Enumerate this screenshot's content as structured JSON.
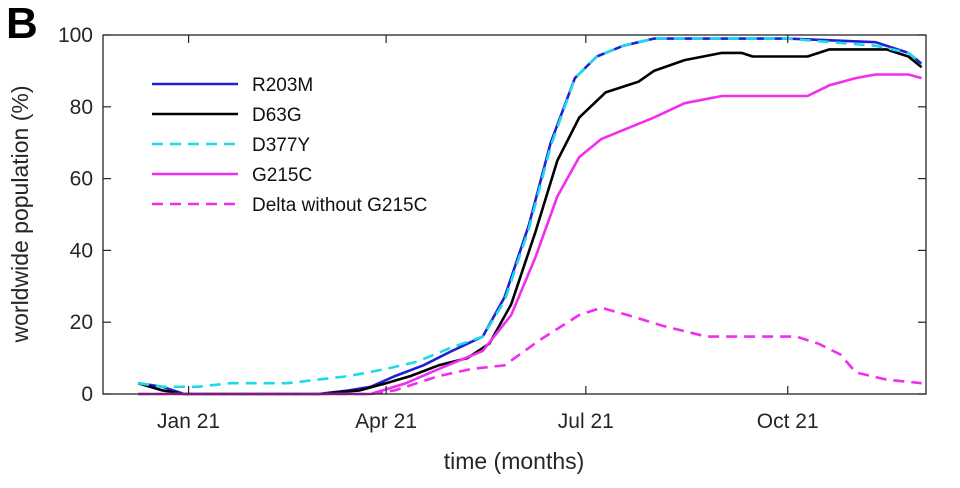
{
  "figure": {
    "panel_label": "B"
  },
  "chart_data": {
    "type": "line",
    "title": "",
    "xlabel": "time (months)",
    "ylabel": "worldwide population (%)",
    "xlim": [
      "2020-11-23",
      "2021-12-03"
    ],
    "ylim": [
      0,
      100
    ],
    "xticks": [
      {
        "date": "2021-01-01",
        "label": "Jan 21"
      },
      {
        "date": "2021-04-01",
        "label": "Apr 21"
      },
      {
        "date": "2021-07-01",
        "label": "Jul 21"
      },
      {
        "date": "2021-10-01",
        "label": "Oct 21"
      }
    ],
    "yticks": [
      0,
      20,
      40,
      60,
      80,
      100
    ],
    "grid": false,
    "legend_position": "top-left",
    "series": [
      {
        "name": "R203M",
        "color": "#1f1fd6",
        "dash": "solid",
        "points": [
          [
            "2020-12-09",
            3
          ],
          [
            "2020-12-20",
            2
          ],
          [
            "2020-12-30",
            0
          ],
          [
            "2021-02-01",
            0
          ],
          [
            "2021-03-01",
            0
          ],
          [
            "2021-03-15",
            1
          ],
          [
            "2021-03-25",
            2
          ],
          [
            "2021-04-05",
            5
          ],
          [
            "2021-04-18",
            8
          ],
          [
            "2021-05-01",
            12
          ],
          [
            "2021-05-15",
            16
          ],
          [
            "2021-05-25",
            27
          ],
          [
            "2021-06-05",
            47
          ],
          [
            "2021-06-15",
            70
          ],
          [
            "2021-06-26",
            88
          ],
          [
            "2021-07-06",
            94
          ],
          [
            "2021-07-18",
            97
          ],
          [
            "2021-08-01",
            99
          ],
          [
            "2021-10-01",
            99
          ],
          [
            "2021-11-10",
            98
          ],
          [
            "2021-11-25",
            95
          ],
          [
            "2021-12-01",
            92
          ]
        ]
      },
      {
        "name": "D63G",
        "color": "#000000",
        "dash": "solid",
        "points": [
          [
            "2020-12-09",
            3
          ],
          [
            "2020-12-20",
            1
          ],
          [
            "2020-12-30",
            0
          ],
          [
            "2021-02-01",
            0
          ],
          [
            "2021-03-01",
            0
          ],
          [
            "2021-03-20",
            1
          ],
          [
            "2021-04-01",
            3
          ],
          [
            "2021-04-12",
            5
          ],
          [
            "2021-04-25",
            8
          ],
          [
            "2021-05-08",
            10
          ],
          [
            "2021-05-18",
            14
          ],
          [
            "2021-05-28",
            25
          ],
          [
            "2021-06-08",
            45
          ],
          [
            "2021-06-18",
            65
          ],
          [
            "2021-06-28",
            77
          ],
          [
            "2021-07-10",
            84
          ],
          [
            "2021-07-25",
            87
          ],
          [
            "2021-08-01",
            90
          ],
          [
            "2021-08-15",
            93
          ],
          [
            "2021-09-01",
            95
          ],
          [
            "2021-09-10",
            95
          ],
          [
            "2021-09-15",
            94
          ],
          [
            "2021-10-10",
            94
          ],
          [
            "2021-10-20",
            96
          ],
          [
            "2021-11-15",
            96
          ],
          [
            "2021-11-25",
            94
          ],
          [
            "2021-12-01",
            91
          ]
        ]
      },
      {
        "name": "D377Y",
        "color": "#1ed9e6",
        "dash": "dashed",
        "points": [
          [
            "2020-12-09",
            3
          ],
          [
            "2020-12-20",
            2
          ],
          [
            "2021-01-05",
            2
          ],
          [
            "2021-01-20",
            3
          ],
          [
            "2021-02-15",
            3
          ],
          [
            "2021-03-01",
            4
          ],
          [
            "2021-03-15",
            5
          ],
          [
            "2021-04-01",
            7
          ],
          [
            "2021-04-15",
            9
          ],
          [
            "2021-05-01",
            13
          ],
          [
            "2021-05-15",
            16
          ],
          [
            "2021-05-25",
            26
          ],
          [
            "2021-06-05",
            46
          ],
          [
            "2021-06-15",
            69
          ],
          [
            "2021-06-26",
            88
          ],
          [
            "2021-07-06",
            94
          ],
          [
            "2021-07-18",
            97
          ],
          [
            "2021-08-01",
            99
          ],
          [
            "2021-10-01",
            99
          ],
          [
            "2021-11-10",
            97
          ],
          [
            "2021-11-25",
            95
          ],
          [
            "2021-12-01",
            92
          ]
        ]
      },
      {
        "name": "G215C",
        "color": "#f02ef0",
        "dash": "solid",
        "points": [
          [
            "2020-12-09",
            0
          ],
          [
            "2021-02-01",
            0
          ],
          [
            "2021-03-01",
            0
          ],
          [
            "2021-03-25",
            0
          ],
          [
            "2021-04-10",
            3
          ],
          [
            "2021-04-25",
            7
          ],
          [
            "2021-05-15",
            12
          ],
          [
            "2021-05-28",
            22
          ],
          [
            "2021-06-08",
            38
          ],
          [
            "2021-06-18",
            55
          ],
          [
            "2021-06-28",
            66
          ],
          [
            "2021-07-08",
            71
          ],
          [
            "2021-07-20",
            74
          ],
          [
            "2021-08-01",
            77
          ],
          [
            "2021-08-15",
            81
          ],
          [
            "2021-09-01",
            83
          ],
          [
            "2021-10-10",
            83
          ],
          [
            "2021-10-20",
            86
          ],
          [
            "2021-11-01",
            88
          ],
          [
            "2021-11-10",
            89
          ],
          [
            "2021-11-25",
            89
          ],
          [
            "2021-12-01",
            88
          ]
        ]
      },
      {
        "name": "Delta without G215C",
        "color": "#f02ef0",
        "dash": "dashed",
        "points": [
          [
            "2020-12-09",
            0
          ],
          [
            "2021-02-01",
            0
          ],
          [
            "2021-03-01",
            0
          ],
          [
            "2021-03-25",
            0
          ],
          [
            "2021-04-05",
            1
          ],
          [
            "2021-04-15",
            3
          ],
          [
            "2021-04-25",
            5
          ],
          [
            "2021-05-10",
            7
          ],
          [
            "2021-05-25",
            8
          ],
          [
            "2021-06-10",
            15
          ],
          [
            "2021-06-28",
            22
          ],
          [
            "2021-07-08",
            24
          ],
          [
            "2021-07-20",
            22
          ],
          [
            "2021-08-05",
            19
          ],
          [
            "2021-08-25",
            16
          ],
          [
            "2021-09-15",
            16
          ],
          [
            "2021-10-05",
            16
          ],
          [
            "2021-10-15",
            14
          ],
          [
            "2021-10-25",
            11
          ],
          [
            "2021-11-01",
            6
          ],
          [
            "2021-11-15",
            4
          ],
          [
            "2021-12-01",
            3
          ]
        ]
      }
    ]
  }
}
